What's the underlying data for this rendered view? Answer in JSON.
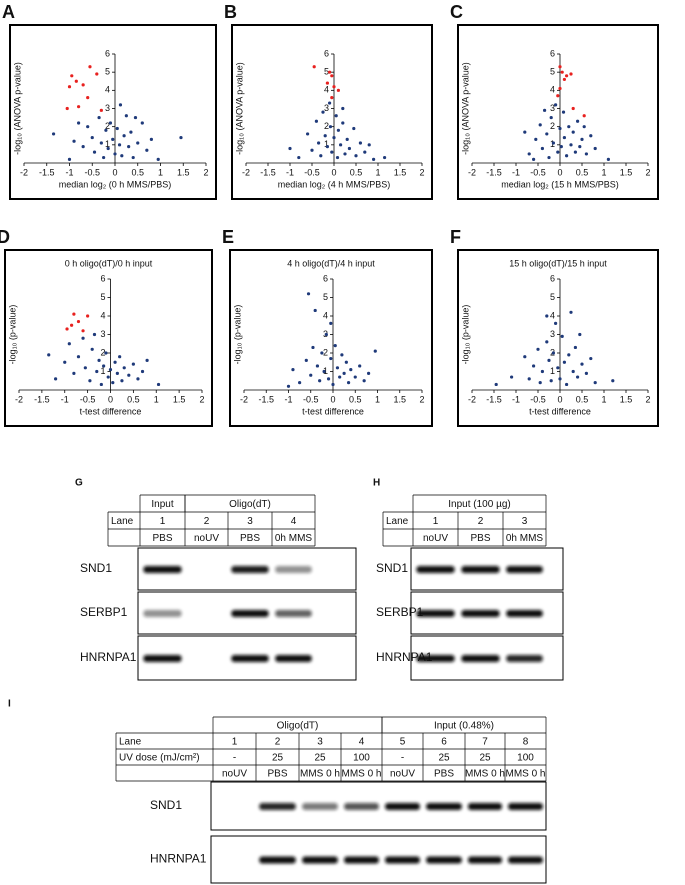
{
  "chart_data": [
    {
      "type": "scatter",
      "panel_label": "A",
      "ylabel": "-log₁₀ (ANOVA p-value)",
      "xlabel": "median log₂ (0 h MMS/PBS)",
      "xlim": [
        -2,
        2
      ],
      "xticks": [
        -2,
        -1.5,
        -1,
        -0.5,
        0,
        0.5,
        1,
        1.5,
        2
      ],
      "ylim": [
        0,
        6
      ],
      "yticks": [
        1,
        2,
        3,
        4,
        5,
        6
      ],
      "grid": false,
      "series": [
        {
          "color": "#1f3a7a",
          "x": [
            -1.35,
            -1.0,
            -0.9,
            -0.7,
            -0.6,
            -0.5,
            -0.45,
            -0.35,
            -0.3,
            -0.25,
            -0.2,
            -0.15,
            -0.1,
            -0.05,
            0,
            0.05,
            0.1,
            0.12,
            0.15,
            0.2,
            0.25,
            0.3,
            0.35,
            0.4,
            0.5,
            0.6,
            0.7,
            0.8,
            0.95,
            1.45,
            -0.8,
            0.45
          ],
          "values": [
            1.6,
            0.2,
            1.2,
            0.9,
            2.0,
            1.4,
            0.6,
            2.5,
            1.1,
            0.3,
            1.8,
            0.8,
            2.2,
            1.3,
            0.5,
            1.9,
            1.0,
            3.2,
            0.4,
            1.5,
            2.6,
            0.9,
            1.7,
            0.3,
            1.1,
            2.2,
            0.7,
            1.3,
            0.2,
            1.4,
            2.2,
            2.5
          ]
        },
        {
          "color": "#e8211f",
          "x": [
            -0.95,
            -0.85,
            -0.55,
            -1.0,
            -0.7,
            -0.4,
            -0.6,
            -1.05,
            -0.8,
            -0.3
          ],
          "values": [
            4.8,
            4.5,
            5.3,
            4.2,
            4.3,
            4.9,
            3.6,
            3.0,
            3.1,
            2.9
          ]
        }
      ]
    },
    {
      "type": "scatter",
      "panel_label": "B",
      "ylabel": "-log₁₀ (ANOVA p-value)",
      "xlabel": "median log₂ (4 h MMS/PBS)",
      "xlim": [
        -2,
        2
      ],
      "xticks": [
        -2,
        -1.5,
        -1,
        -0.5,
        0,
        0.5,
        1,
        1.5,
        2
      ],
      "ylim": [
        0,
        6
      ],
      "yticks": [
        1,
        2,
        3,
        4,
        5,
        6
      ],
      "grid": false,
      "series": [
        {
          "color": "#1f3a7a",
          "x": [
            -1.0,
            -0.8,
            -0.6,
            -0.5,
            -0.4,
            -0.35,
            -0.3,
            -0.25,
            -0.2,
            -0.15,
            -0.1,
            -0.08,
            -0.05,
            0,
            0.05,
            0.08,
            0.1,
            0.15,
            0.2,
            0.25,
            0.3,
            0.35,
            0.45,
            0.5,
            0.6,
            0.7,
            0.8,
            0.9,
            1.15,
            0.2
          ],
          "values": [
            0.8,
            0.3,
            1.6,
            0.7,
            2.3,
            1.1,
            0.4,
            2.8,
            1.5,
            0.9,
            3.3,
            2.0,
            0.6,
            1.4,
            2.6,
            0.3,
            1.8,
            1.0,
            2.2,
            0.5,
            1.3,
            0.8,
            1.9,
            0.4,
            1.1,
            0.6,
            1.0,
            0.2,
            0.3,
            3.0
          ]
        },
        {
          "color": "#e8211f",
          "x": [
            -0.45,
            -0.1,
            -0.05,
            -0.15,
            0,
            -0.05,
            0.1
          ],
          "values": [
            5.3,
            5.0,
            4.8,
            4.4,
            4.2,
            3.6,
            4.0
          ]
        }
      ]
    },
    {
      "type": "scatter",
      "panel_label": "C",
      "ylabel": "-log₁₀ (ANOVA p-value)",
      "xlabel": "median log₂ (15 h MMS/PBS)",
      "xlim": [
        -2,
        2
      ],
      "xticks": [
        -2,
        -1.5,
        -1,
        -0.5,
        0,
        0.5,
        1,
        1.5,
        2
      ],
      "ylim": [
        0,
        6
      ],
      "yticks": [
        1,
        2,
        3,
        4,
        5,
        6
      ],
      "grid": false,
      "series": [
        {
          "color": "#1f3a7a",
          "x": [
            -0.8,
            -0.7,
            -0.55,
            -0.45,
            -0.4,
            -0.3,
            -0.25,
            -0.2,
            -0.15,
            -0.1,
            -0.05,
            0,
            0.03,
            0.08,
            0.1,
            0.15,
            0.2,
            0.25,
            0.3,
            0.35,
            0.4,
            0.45,
            0.5,
            0.6,
            0.7,
            0.8,
            1.1,
            -0.35,
            0.55,
            -0.6
          ],
          "values": [
            1.7,
            0.5,
            1.3,
            2.1,
            0.8,
            1.6,
            0.3,
            2.5,
            1.1,
            3.2,
            0.6,
            1.9,
            0.9,
            2.8,
            1.4,
            0.4,
            2.0,
            1.0,
            1.7,
            0.6,
            2.3,
            0.9,
            1.3,
            0.5,
            1.5,
            0.8,
            0.2,
            2.9,
            2.0,
            0.2
          ]
        },
        {
          "color": "#e8211f",
          "x": [
            0,
            0.05,
            0.1,
            0,
            0.15,
            0.3,
            0.55,
            0.25,
            -0.05
          ],
          "values": [
            5.3,
            5.0,
            4.6,
            4.1,
            4.8,
            3.0,
            2.6,
            4.9,
            3.7
          ]
        }
      ]
    },
    {
      "type": "scatter",
      "panel_label": "D",
      "title": "0 h oligo(dT)/0 h input",
      "ylabel": "-log₁₀ (p-value)",
      "xlabel": "t-test difference",
      "xlim": [
        -2,
        2
      ],
      "xticks": [
        -2,
        -1.5,
        -1,
        -0.5,
        0,
        0.5,
        1,
        1.5,
        2
      ],
      "ylim": [
        0,
        6
      ],
      "yticks": [
        1,
        2,
        3,
        4,
        5,
        6
      ],
      "grid": false,
      "series": [
        {
          "color": "#1f3a7a",
          "x": [
            -1.35,
            -1.2,
            -1.0,
            -0.9,
            -0.8,
            -0.7,
            -0.6,
            -0.55,
            -0.45,
            -0.4,
            -0.3,
            -0.25,
            -0.2,
            -0.15,
            -0.1,
            -0.05,
            0,
            0.05,
            0.1,
            0.15,
            0.2,
            0.25,
            0.3,
            0.4,
            0.5,
            0.6,
            0.7,
            0.8,
            1.05,
            -0.35
          ],
          "values": [
            1.9,
            0.6,
            1.5,
            2.5,
            0.9,
            1.8,
            2.8,
            1.2,
            0.5,
            2.2,
            1.0,
            1.6,
            0.3,
            1.3,
            2.0,
            0.7,
            1.1,
            0.4,
            1.5,
            0.9,
            1.8,
            0.5,
            1.2,
            0.8,
            1.4,
            0.6,
            1.0,
            1.6,
            0.3,
            3.0
          ]
        },
        {
          "color": "#e8211f",
          "x": [
            -0.8,
            -0.85,
            -0.95,
            -0.7,
            -0.5,
            -0.6
          ],
          "values": [
            4.1,
            3.5,
            3.3,
            3.7,
            4.0,
            3.2
          ]
        }
      ]
    },
    {
      "type": "scatter",
      "panel_label": "E",
      "title": "4 h oligo(dT)/4 h input",
      "ylabel": "-log₁₀ (p-value)",
      "xlabel": "t-test difference",
      "xlim": [
        -2,
        2
      ],
      "xticks": [
        -2,
        -1.5,
        -1,
        -0.5,
        0,
        0.5,
        1,
        1.5,
        2
      ],
      "ylim": [
        0,
        6
      ],
      "yticks": [
        1,
        2,
        3,
        4,
        5,
        6
      ],
      "grid": false,
      "series": [
        {
          "color": "#1f3a7a",
          "x": [
            -0.9,
            -0.75,
            -0.6,
            -0.55,
            -0.5,
            -0.45,
            -0.4,
            -0.35,
            -0.3,
            -0.25,
            -0.2,
            -0.15,
            -0.1,
            -0.05,
            0,
            0.05,
            0.1,
            0.15,
            0.2,
            0.25,
            0.3,
            0.35,
            0.4,
            0.5,
            0.6,
            0.7,
            0.8,
            0.95,
            -1.0,
            -0.05
          ],
          "values": [
            1.1,
            0.4,
            1.6,
            5.2,
            0.8,
            2.3,
            4.3,
            1.3,
            0.5,
            2.0,
            1.0,
            3.0,
            0.6,
            1.7,
            0.3,
            2.4,
            1.2,
            0.7,
            1.9,
            0.9,
            1.5,
            0.4,
            1.1,
            0.7,
            1.3,
            0.5,
            0.9,
            2.1,
            0.2,
            3.6
          ]
        }
      ]
    },
    {
      "type": "scatter",
      "panel_label": "F",
      "title": "15 h oligo(dT)/15 h input",
      "ylabel": "-log₁₀ (p-value)",
      "xlabel": "t-test difference",
      "xlim": [
        -2,
        2
      ],
      "xticks": [
        -2,
        -1.5,
        -1,
        -0.5,
        0,
        0.5,
        1,
        1.5,
        2
      ],
      "ylim": [
        0,
        6
      ],
      "yticks": [
        1,
        2,
        3,
        4,
        5,
        6
      ],
      "grid": false,
      "series": [
        {
          "color": "#1f3a7a",
          "x": [
            -1.45,
            -1.1,
            -0.8,
            -0.7,
            -0.6,
            -0.5,
            -0.45,
            -0.4,
            -0.3,
            -0.25,
            -0.2,
            -0.15,
            -0.1,
            -0.05,
            0,
            0.05,
            0.1,
            0.15,
            0.2,
            0.25,
            0.3,
            0.35,
            0.4,
            0.5,
            0.6,
            0.7,
            0.8,
            1.2,
            -0.3,
            0.45
          ],
          "values": [
            0.3,
            0.7,
            1.8,
            0.6,
            1.3,
            2.2,
            0.4,
            1.0,
            2.6,
            1.6,
            0.5,
            2.0,
            3.6,
            1.2,
            0.6,
            2.9,
            1.5,
            0.3,
            1.9,
            4.2,
            1.0,
            2.3,
            0.7,
            1.4,
            0.9,
            1.7,
            0.4,
            0.5,
            4.0,
            3.0
          ]
        }
      ]
    }
  ],
  "blots": [
    {
      "panel_label": "G",
      "groups": [
        "Input",
        "Oligo(dT)"
      ],
      "lane_label": "Lane",
      "lanes": [
        1,
        2,
        3,
        4
      ],
      "conditions": [
        "PBS",
        "noUV",
        "PBS",
        "0h MMS"
      ],
      "proteins": [
        "SND1",
        "SERBP1",
        "HNRNPA1"
      ]
    },
    {
      "panel_label": "H",
      "groups": [
        "Input (100 µg)"
      ],
      "lane_label": "Lane",
      "lanes": [
        1,
        2,
        3
      ],
      "conditions": [
        "noUV",
        "PBS",
        "0h MMS"
      ],
      "proteins": [
        "SND1",
        "SERBP1",
        "HNRNPA1"
      ]
    },
    {
      "panel_label": "I",
      "groups": [
        "Oligo(dT)",
        "Input (0.48%)"
      ],
      "lane_label": "Lane",
      "lanes": [
        1,
        2,
        3,
        4,
        5,
        6,
        7,
        8
      ],
      "dose_label": "UV dose (mJ/cm²)",
      "doses": [
        "-",
        25,
        25,
        100,
        "-",
        25,
        25,
        100
      ],
      "conditions": [
        "noUV",
        "PBS",
        "MMS 0 h",
        "MMS 0 h",
        "noUV",
        "PBS",
        "MMS 0 h",
        "MMS 0 h"
      ],
      "proteins": [
        "SND1",
        "HNRNPA1"
      ]
    }
  ]
}
